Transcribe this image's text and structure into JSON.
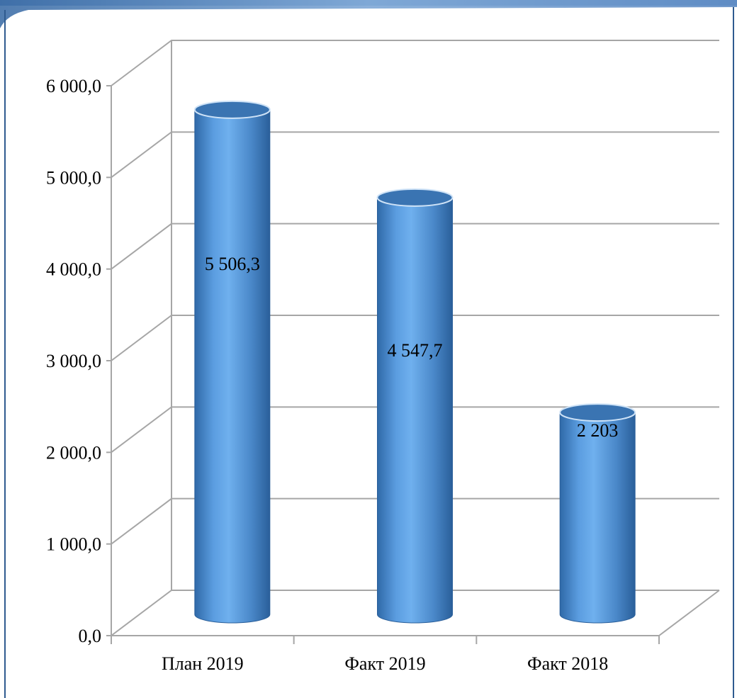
{
  "chart_data": {
    "type": "bar",
    "style": "3d-cylinder",
    "categories": [
      "План 2019",
      "Факт 2019",
      "Факт 2018"
    ],
    "values": [
      5506.3,
      4547.7,
      2203
    ],
    "data_labels": [
      "5 506,3",
      "4 547,7",
      "2 203"
    ],
    "y_ticks": [
      0,
      1000,
      2000,
      3000,
      4000,
      5000,
      6000
    ],
    "y_tick_labels": [
      "0,0",
      "1 000,0",
      "2 000,0",
      "3 000,0",
      "4 000,0",
      "5 000,0",
      "6 000,0"
    ],
    "ylim": [
      0,
      6000
    ],
    "grid": true,
    "legend": "none",
    "title": "",
    "xlabel": "",
    "ylabel": ""
  },
  "colors": {
    "bar_body": "#4f8fd0",
    "bar_highlight": "#8cc0f0",
    "bar_shadow": "#2a5f9a",
    "bar_top": "#3a74b2",
    "grid": "#a6a6a6",
    "frame_top": "#5b8ac4",
    "frame_edge": "#2f5b8f"
  }
}
